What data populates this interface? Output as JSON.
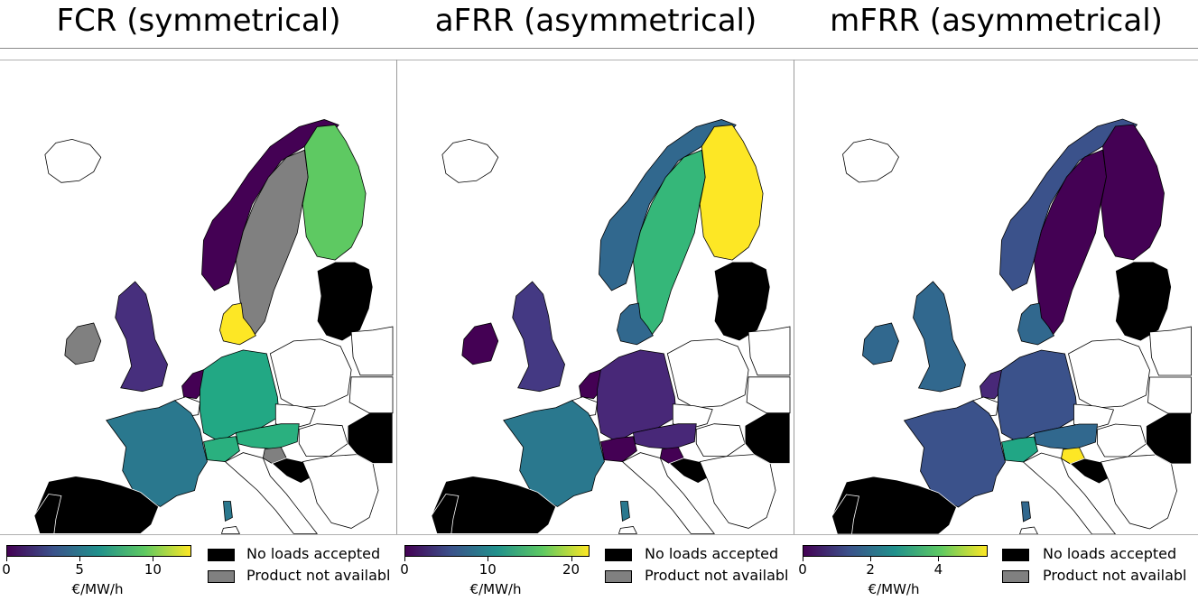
{
  "colors": {
    "no_loads": "#000000",
    "not_available": "#808080",
    "unshaded": "#ffffff",
    "viridis": [
      "#440154",
      "#3b528b",
      "#21918c",
      "#5ec962",
      "#fde725"
    ]
  },
  "panels": [
    {
      "title": "FCR (symmetrical)",
      "colorbar": {
        "min": 0,
        "max": 12.5,
        "ticks": [
          "0",
          "5",
          "10"
        ],
        "tick_values": [
          0,
          5,
          10
        ],
        "unit": "€/MW/h"
      },
      "legend": [
        {
          "label": "No loads accepted",
          "swatch": "no_loads"
        },
        {
          "label": "Product not availabl",
          "swatch": "not_available"
        }
      ]
    },
    {
      "title": "aFRR (asymmetrical)",
      "colorbar": {
        "min": 0,
        "max": 22,
        "ticks": [
          "0",
          "10",
          "20"
        ],
        "tick_values": [
          0,
          10,
          20
        ],
        "unit": "€/MW/h"
      },
      "legend": [
        {
          "label": "No loads accepted",
          "swatch": "no_loads"
        },
        {
          "label": "Product not availabl",
          "swatch": "not_available"
        }
      ]
    },
    {
      "title": "mFRR (asymmetrical)",
      "colorbar": {
        "min": 0,
        "max": 5.4,
        "ticks": [
          "0",
          "2",
          "4"
        ],
        "tick_values": [
          0,
          2,
          4
        ],
        "unit": "€/MW/h"
      },
      "legend": [
        {
          "label": "No loads accepted",
          "swatch": "no_loads"
        },
        {
          "label": "Product not availabl",
          "swatch": "not_available"
        }
      ]
    }
  ]
}
